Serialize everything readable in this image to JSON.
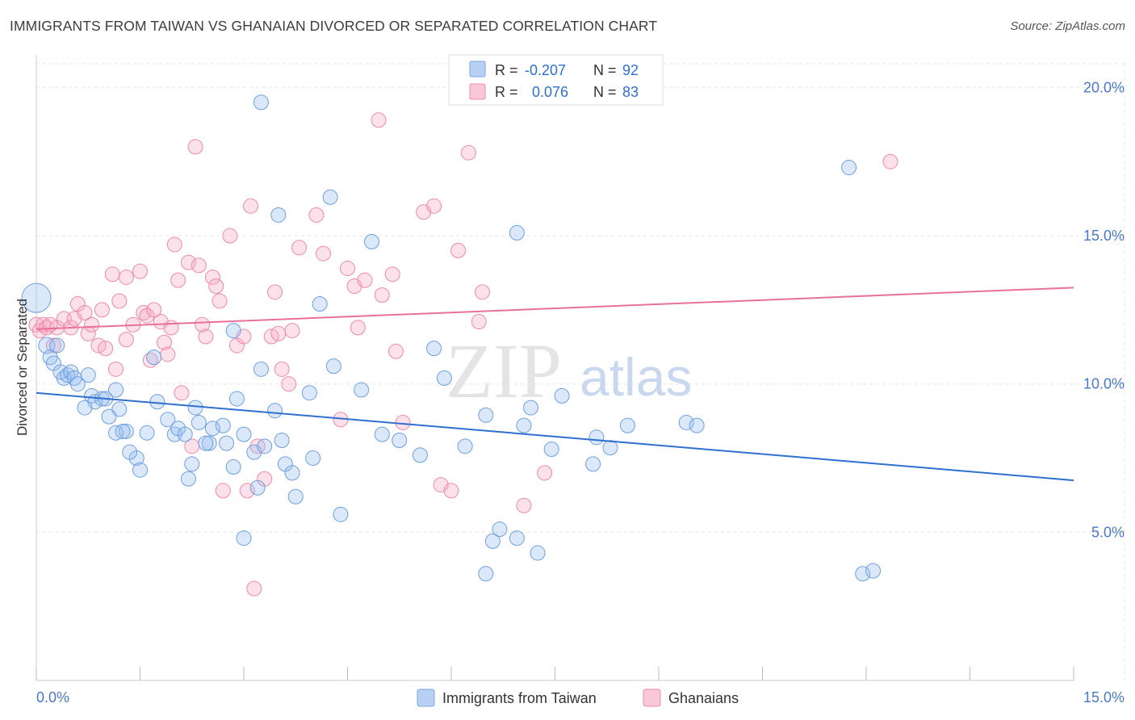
{
  "title": "IMMIGRANTS FROM TAIWAN VS GHANAIAN DIVORCED OR SEPARATED CORRELATION CHART",
  "source": "Source: ZipAtlas.com",
  "watermark": {
    "zip": "ZIP",
    "atlas": "atlas"
  },
  "colors": {
    "blue": "#6f9fde",
    "pink": "#ee8aa8",
    "blue_line": "#2f6fcf",
    "pink_line": "#e8709a",
    "tick": "#4a78c8"
  },
  "legend": {
    "rows": [
      {
        "r_label": "R =",
        "r_value": "-0.207",
        "n_label": "N =",
        "n_value": "92"
      },
      {
        "r_label": "R =",
        "r_value": "0.076",
        "n_label": "N =",
        "n_value": "83"
      }
    ]
  },
  "bottom_legend": [
    "Immigrants from Taiwan",
    "Ghanaians"
  ],
  "chart_data": {
    "type": "scatter",
    "title": "IMMIGRANTS FROM TAIWAN VS GHANAIAN DIVORCED OR SEPARATED CORRELATION CHART",
    "xlabel": "",
    "ylabel": "Divorced or Separated",
    "xlim": [
      0,
      15
    ],
    "ylim": [
      0,
      20.8
    ],
    "x_tick_labels": [
      "0.0%",
      "15.0%"
    ],
    "y_ticks": [
      5,
      10,
      15,
      20
    ],
    "y_tick_labels": [
      "5.0%",
      "10.0%",
      "15.0%",
      "20.0%"
    ],
    "grid": true,
    "legend_position": "top-center",
    "series": [
      {
        "name": "Immigrants from Taiwan",
        "R": -0.207,
        "N": 92,
        "trend": [
          [
            0.0,
            9.7
          ],
          [
            15.0,
            6.75
          ]
        ],
        "points": [
          [
            0.0,
            12.9
          ],
          [
            0.15,
            11.3
          ],
          [
            0.2,
            10.9
          ],
          [
            0.25,
            10.7
          ],
          [
            0.35,
            10.4
          ],
          [
            0.4,
            10.2
          ],
          [
            0.45,
            10.3
          ],
          [
            0.5,
            10.4
          ],
          [
            0.55,
            10.2
          ],
          [
            0.6,
            10.0
          ],
          [
            0.75,
            10.3
          ],
          [
            0.8,
            9.6
          ],
          [
            0.85,
            9.4
          ],
          [
            0.95,
            9.5
          ],
          [
            0.7,
            9.2
          ],
          [
            1.0,
            9.5
          ],
          [
            1.15,
            9.8
          ],
          [
            1.2,
            9.15
          ],
          [
            1.05,
            8.9
          ],
          [
            1.3,
            8.4
          ],
          [
            1.15,
            8.35
          ],
          [
            1.25,
            8.4
          ],
          [
            1.45,
            7.5
          ],
          [
            1.5,
            7.1
          ],
          [
            1.35,
            7.7
          ],
          [
            1.7,
            10.9
          ],
          [
            1.75,
            9.4
          ],
          [
            1.9,
            8.8
          ],
          [
            2.0,
            8.3
          ],
          [
            2.05,
            8.5
          ],
          [
            2.15,
            8.3
          ],
          [
            2.25,
            7.3
          ],
          [
            2.2,
            6.8
          ],
          [
            2.3,
            9.2
          ],
          [
            2.35,
            8.7
          ],
          [
            2.5,
            8.0
          ],
          [
            2.55,
            8.5
          ],
          [
            2.75,
            8.0
          ],
          [
            2.7,
            8.6
          ],
          [
            2.85,
            7.2
          ],
          [
            2.9,
            9.5
          ],
          [
            2.85,
            11.8
          ],
          [
            3.0,
            4.8
          ],
          [
            3.0,
            8.3
          ],
          [
            3.15,
            7.7
          ],
          [
            3.2,
            6.5
          ],
          [
            3.3,
            7.9
          ],
          [
            3.25,
            10.5
          ],
          [
            3.45,
            9.1
          ],
          [
            3.55,
            8.1
          ],
          [
            3.6,
            7.3
          ],
          [
            3.7,
            7.0
          ],
          [
            3.75,
            6.2
          ],
          [
            3.5,
            15.7
          ],
          [
            3.25,
            19.5
          ],
          [
            4.0,
            7.5
          ],
          [
            4.1,
            12.7
          ],
          [
            4.25,
            16.3
          ],
          [
            4.3,
            10.6
          ],
          [
            4.4,
            5.6
          ],
          [
            4.7,
            9.8
          ],
          [
            4.85,
            14.8
          ],
          [
            5.0,
            8.3
          ],
          [
            5.25,
            8.1
          ],
          [
            5.55,
            7.6
          ],
          [
            5.9,
            10.2
          ],
          [
            6.2,
            7.9
          ],
          [
            6.5,
            8.95
          ],
          [
            6.6,
            4.7
          ],
          [
            6.7,
            5.1
          ],
          [
            6.5,
            3.6
          ],
          [
            6.95,
            15.1
          ],
          [
            6.95,
            4.8
          ],
          [
            7.05,
            8.6
          ],
          [
            7.15,
            9.2
          ],
          [
            7.25,
            4.3
          ],
          [
            7.45,
            7.8
          ],
          [
            7.6,
            9.6
          ],
          [
            8.1,
            8.2
          ],
          [
            8.3,
            7.85
          ],
          [
            8.05,
            7.3
          ],
          [
            8.55,
            8.6
          ],
          [
            9.4,
            8.7
          ],
          [
            9.55,
            8.6
          ],
          [
            11.75,
            17.3
          ],
          [
            11.95,
            3.6
          ],
          [
            12.1,
            3.7
          ],
          [
            0.3,
            11.3
          ],
          [
            1.6,
            8.35
          ],
          [
            2.45,
            8.0
          ],
          [
            3.95,
            9.7
          ],
          [
            5.75,
            11.2
          ]
        ]
      },
      {
        "name": "Ghanaians",
        "R": 0.076,
        "N": 83,
        "trend": [
          [
            0.0,
            11.85
          ],
          [
            15.0,
            13.25
          ]
        ],
        "points": [
          [
            0.0,
            12.0
          ],
          [
            0.05,
            11.8
          ],
          [
            0.1,
            12.0
          ],
          [
            0.15,
            11.9
          ],
          [
            0.25,
            11.3
          ],
          [
            0.3,
            11.9
          ],
          [
            0.4,
            12.2
          ],
          [
            0.5,
            11.9
          ],
          [
            0.55,
            12.2
          ],
          [
            0.6,
            12.7
          ],
          [
            0.7,
            12.4
          ],
          [
            0.75,
            11.7
          ],
          [
            0.8,
            12.0
          ],
          [
            0.9,
            11.3
          ],
          [
            0.95,
            12.5
          ],
          [
            1.0,
            11.2
          ],
          [
            1.1,
            13.7
          ],
          [
            1.15,
            10.5
          ],
          [
            1.2,
            12.8
          ],
          [
            1.3,
            13.6
          ],
          [
            1.3,
            11.5
          ],
          [
            1.4,
            12.0
          ],
          [
            1.5,
            13.8
          ],
          [
            1.55,
            12.4
          ],
          [
            1.6,
            12.3
          ],
          [
            1.65,
            10.8
          ],
          [
            1.7,
            12.5
          ],
          [
            1.8,
            12.1
          ],
          [
            1.85,
            11.4
          ],
          [
            1.9,
            11.0
          ],
          [
            1.95,
            11.9
          ],
          [
            2.0,
            14.7
          ],
          [
            2.05,
            13.5
          ],
          [
            2.1,
            9.7
          ],
          [
            2.2,
            14.1
          ],
          [
            2.25,
            7.9
          ],
          [
            2.3,
            18.0
          ],
          [
            2.35,
            14.0
          ],
          [
            2.4,
            12.0
          ],
          [
            2.45,
            11.6
          ],
          [
            2.55,
            13.6
          ],
          [
            2.6,
            13.3
          ],
          [
            2.65,
            12.8
          ],
          [
            2.7,
            6.4
          ],
          [
            2.8,
            15.0
          ],
          [
            2.9,
            11.3
          ],
          [
            3.0,
            11.6
          ],
          [
            3.05,
            6.4
          ],
          [
            3.1,
            16.0
          ],
          [
            3.2,
            7.9
          ],
          [
            3.3,
            6.8
          ],
          [
            3.4,
            11.6
          ],
          [
            3.5,
            11.7
          ],
          [
            3.45,
            13.1
          ],
          [
            3.55,
            10.5
          ],
          [
            3.65,
            10.0
          ],
          [
            3.7,
            11.8
          ],
          [
            3.8,
            14.6
          ],
          [
            3.15,
            3.1
          ],
          [
            4.05,
            15.7
          ],
          [
            4.15,
            14.4
          ],
          [
            4.4,
            8.8
          ],
          [
            4.5,
            13.9
          ],
          [
            4.6,
            13.3
          ],
          [
            4.65,
            11.9
          ],
          [
            4.75,
            13.5
          ],
          [
            5.0,
            13.0
          ],
          [
            5.15,
            13.7
          ],
          [
            5.2,
            11.1
          ],
          [
            5.3,
            8.7
          ],
          [
            4.95,
            18.9
          ],
          [
            5.6,
            15.8
          ],
          [
            5.75,
            16.0
          ],
          [
            5.85,
            6.6
          ],
          [
            6.0,
            6.4
          ],
          [
            6.25,
            17.8
          ],
          [
            6.1,
            14.5
          ],
          [
            6.4,
            12.1
          ],
          [
            6.45,
            13.1
          ],
          [
            7.05,
            5.9
          ],
          [
            7.35,
            7.0
          ],
          [
            12.35,
            17.5
          ],
          [
            0.2,
            12.0
          ]
        ]
      }
    ]
  }
}
